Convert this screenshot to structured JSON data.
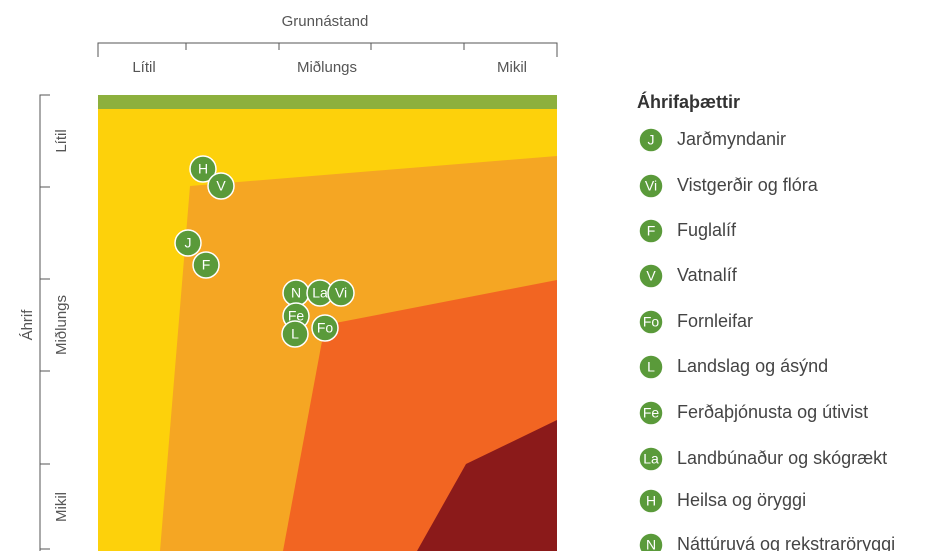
{
  "x_axis": {
    "title": "Grunnástand",
    "labels": [
      "Lítil",
      "Miðlungs",
      "Mikil"
    ]
  },
  "y_axis": {
    "title": "Áhrif",
    "labels": [
      "Lítil",
      "Miðlungs",
      "Mikil"
    ]
  },
  "markers": [
    "H",
    "V",
    "J",
    "F",
    "N",
    "La",
    "Vi",
    "Fe",
    "L",
    "Fo"
  ],
  "legend": {
    "title": "Áhrifaþættir",
    "items": [
      {
        "code": "J",
        "label": "Jarðmyndanir"
      },
      {
        "code": "Vi",
        "label": "Vistgerðir og flóra"
      },
      {
        "code": "F",
        "label": "Fuglalíf"
      },
      {
        "code": "V",
        "label": "Vatnalíf"
      },
      {
        "code": "Fo",
        "label": "Fornleifar"
      },
      {
        "code": "L",
        "label": "Landslag og ásýnd"
      },
      {
        "code": "Fe",
        "label": "Ferðaþjónusta og útivist"
      },
      {
        "code": "La",
        "label": "Landbúnaður og skógrækt"
      },
      {
        "code": "H",
        "label": "Heilsa og öryggi"
      },
      {
        "code": "N",
        "label": "Náttúruvá og rekstraröryggi"
      }
    ]
  }
}
